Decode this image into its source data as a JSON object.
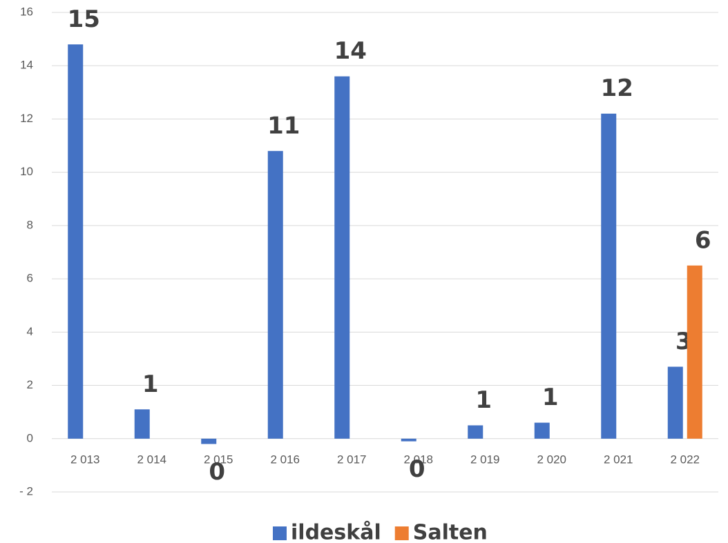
{
  "chart_data": {
    "type": "bar",
    "categories": [
      "2 013",
      "2 014",
      "2 015",
      "2 016",
      "2 017",
      "2 018",
      "2 019",
      "2 020",
      "2 021",
      "2 022"
    ],
    "series": [
      {
        "name": "ildeskål",
        "color": "#4472c4",
        "values": [
          14.8,
          1.1,
          -0.2,
          10.8,
          13.6,
          -0.1,
          0.5,
          0.6,
          12.2,
          2.7
        ],
        "value_labels": [
          "15",
          "1",
          "0",
          "11",
          "14",
          "0",
          "1",
          "1",
          "12",
          "3"
        ]
      },
      {
        "name": "Salten",
        "color": "#ed7d31",
        "values": [
          null,
          null,
          null,
          null,
          null,
          null,
          null,
          null,
          null,
          6.5
        ],
        "value_labels": [
          null,
          null,
          null,
          null,
          null,
          null,
          null,
          null,
          null,
          "6"
        ]
      }
    ],
    "ylim": [
      -2,
      16
    ],
    "yticks": [
      {
        "value": -2,
        "label": "- 2"
      },
      0,
      2,
      4,
      6,
      8,
      10,
      12,
      14,
      16
    ],
    "grid": true,
    "legend": "bottom"
  }
}
